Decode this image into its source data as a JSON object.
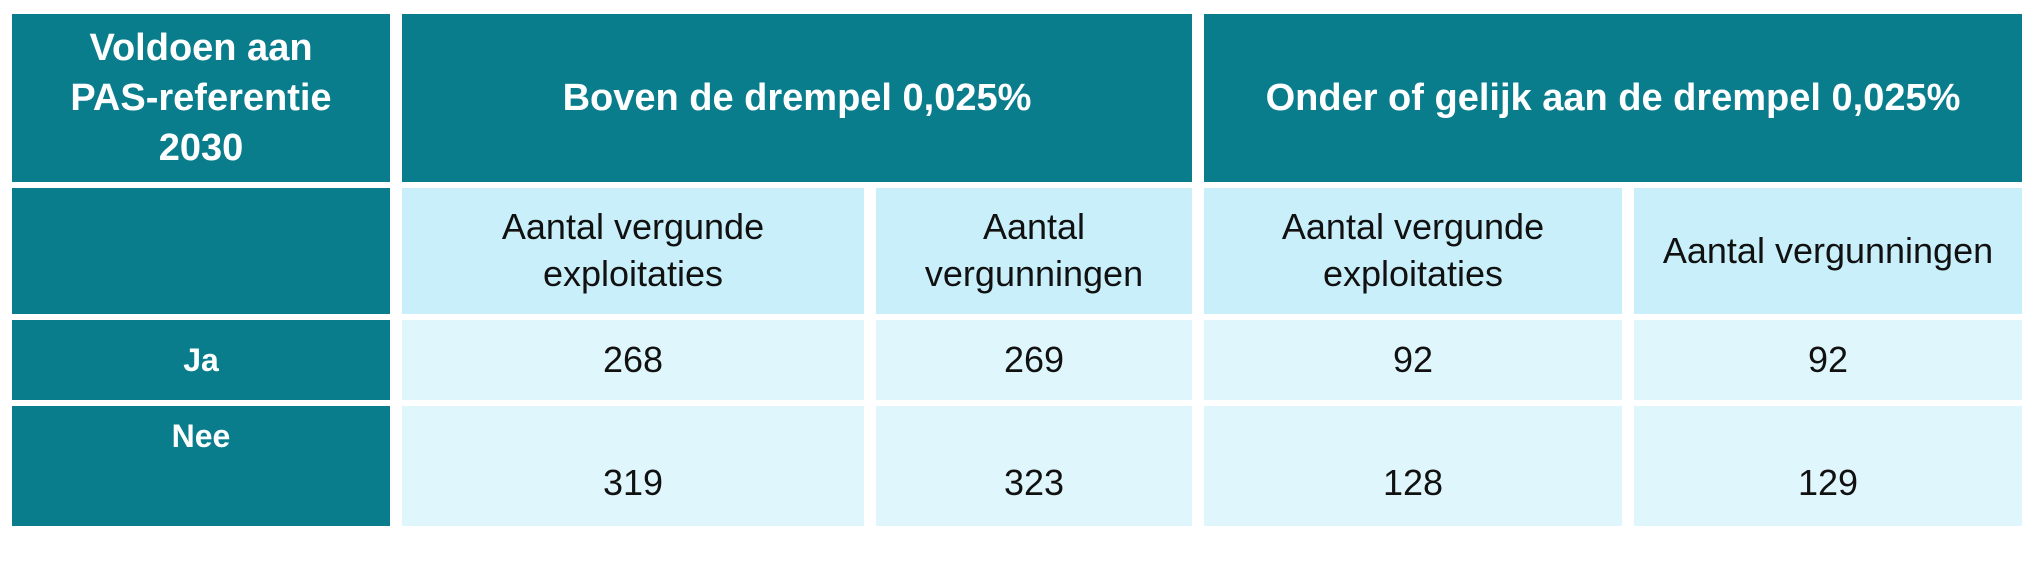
{
  "chart_data": {
    "type": "table",
    "title": "",
    "row_header_title": "Voldoen aan PAS-referentie 2030",
    "column_groups": [
      {
        "label": "Boven de drempel 0,025%",
        "span": 2
      },
      {
        "label": "Onder of gelijk aan de drempel 0,025%",
        "span": 2
      }
    ],
    "columns": [
      "Aantal vergunde exploitaties",
      "Aantal vergunningen",
      "Aantal vergunde exploitaties",
      "Aantal vergunningen"
    ],
    "rows": [
      {
        "label": "Ja",
        "values": [
          268,
          269,
          92,
          92
        ]
      },
      {
        "label": "Nee",
        "values": [
          319,
          323,
          128,
          129
        ]
      }
    ],
    "layout_hints": {
      "grid": "white gaps between cells",
      "header_style": "teal background, white bold text",
      "subheader_style": "light cyan background, black text",
      "data_style": "pale cyan background, black text"
    }
  },
  "header": {
    "corner_lines": [
      "Voldoen aan",
      "PAS-referentie",
      "2030"
    ]
  },
  "colors": {
    "teal_header_bg": "#0A7D8D",
    "subheader_bg": "#C9F0FA",
    "data_cell_bg": "#DFF7FC",
    "header_text": "#FFFFFF",
    "body_text": "#111111",
    "page_bg": "#FFFFFF"
  }
}
